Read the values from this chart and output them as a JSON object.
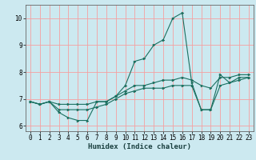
{
  "title": "",
  "xlabel": "Humidex (Indice chaleur)",
  "ylabel": "",
  "bg_color": "#cce9f0",
  "grid_color": "#f5a0a0",
  "line_color": "#1a7060",
  "xlim": [
    -0.5,
    23.5
  ],
  "ylim": [
    5.8,
    10.5
  ],
  "yticks": [
    6,
    7,
    8,
    9,
    10
  ],
  "xticks": [
    0,
    1,
    2,
    3,
    4,
    5,
    6,
    7,
    8,
    9,
    10,
    11,
    12,
    13,
    14,
    15,
    16,
    17,
    18,
    19,
    20,
    21,
    22,
    23
  ],
  "lines": [
    {
      "x": [
        0,
        1,
        2,
        3,
        4,
        5,
        6,
        7,
        8,
        9,
        10,
        11,
        12,
        13,
        14,
        15,
        16,
        17,
        18,
        19,
        20,
        21,
        22,
        23
      ],
      "y": [
        6.9,
        6.8,
        6.9,
        6.5,
        6.3,
        6.2,
        6.2,
        6.9,
        6.9,
        7.1,
        7.5,
        8.4,
        8.5,
        9.0,
        9.2,
        10.0,
        10.2,
        7.6,
        6.6,
        6.6,
        7.9,
        7.6,
        7.8,
        7.8
      ]
    },
    {
      "x": [
        0,
        1,
        2,
        3,
        4,
        5,
        6,
        7,
        8,
        9,
        10,
        11,
        12,
        13,
        14,
        15,
        16,
        17,
        18,
        19,
        20,
        21,
        22,
        23
      ],
      "y": [
        6.9,
        6.8,
        6.9,
        6.6,
        6.6,
        6.6,
        6.6,
        6.7,
        6.8,
        7.0,
        7.2,
        7.3,
        7.4,
        7.4,
        7.4,
        7.5,
        7.5,
        7.5,
        6.6,
        6.6,
        7.5,
        7.6,
        7.7,
        7.8
      ]
    },
    {
      "x": [
        0,
        1,
        2,
        3,
        4,
        5,
        6,
        7,
        8,
        9,
        10,
        11,
        12,
        13,
        14,
        15,
        16,
        17,
        18,
        19,
        20,
        21,
        22,
        23
      ],
      "y": [
        6.9,
        6.8,
        6.9,
        6.8,
        6.8,
        6.8,
        6.8,
        6.9,
        6.9,
        7.1,
        7.3,
        7.5,
        7.5,
        7.6,
        7.7,
        7.7,
        7.8,
        7.7,
        7.5,
        7.4,
        7.8,
        7.8,
        7.9,
        7.9
      ]
    }
  ]
}
